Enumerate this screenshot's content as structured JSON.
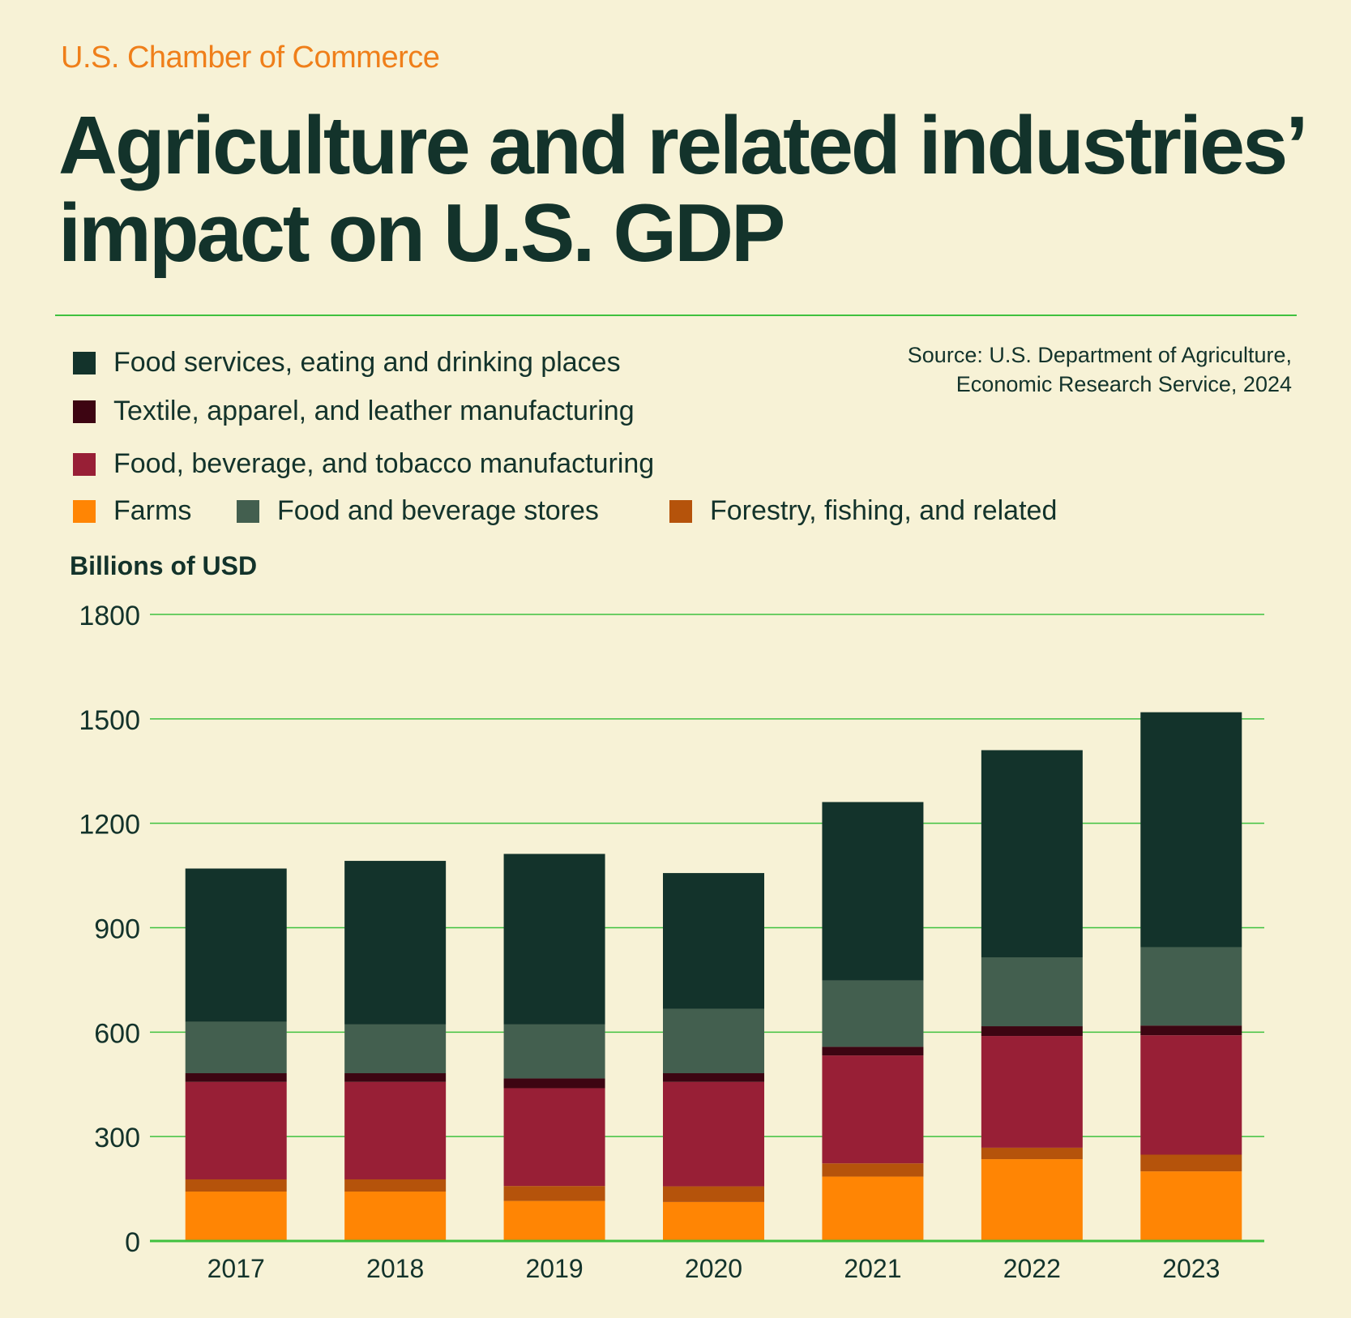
{
  "header": {
    "brand": "U.S. Chamber of Commerce",
    "title": "Agriculture and related industries’ impact on U.S. GDP"
  },
  "source": {
    "line1": "Source: U.S. Department of Agriculture,",
    "line2": "Economic Research Service, 2024"
  },
  "legend": [
    {
      "label": "Food services, eating and drinking places",
      "color": "#13332b"
    },
    {
      "label": "Textile, apparel, and leather manufacturing",
      "color": "#3d0512"
    },
    {
      "label": "Food, beverage, and tobacco manufacturing",
      "color": "#981f36"
    },
    {
      "label": "Farms",
      "color": "#ff8504"
    },
    {
      "label": "Food and beverage stores",
      "color": "#435f4f"
    },
    {
      "label": "Forestry, fishing, and related",
      "color": "#b5530b"
    }
  ],
  "chart_data": {
    "type": "bar",
    "stacked": true,
    "title": "Agriculture and related industries’ impact on U.S. GDP",
    "ylabel": "Billions of USD",
    "xlabel": "",
    "ylim": [
      0,
      1800
    ],
    "yticks": [
      "0",
      "300",
      "600",
      "900",
      "1200",
      "1500",
      "1800"
    ],
    "grid": true,
    "categories": [
      "2017",
      "2018",
      "2019",
      "2020",
      "2021",
      "2022",
      "2023"
    ],
    "series": [
      {
        "name": "Farms",
        "color": "#ff8504",
        "values": [
          142,
          142,
          115,
          112,
          185,
          235,
          200
        ]
      },
      {
        "name": "Forestry, fishing, and related",
        "color": "#b5530b",
        "values": [
          35,
          35,
          43,
          45,
          38,
          33,
          48
        ]
      },
      {
        "name": "Food, beverage, and tobacco manufacturing",
        "color": "#981f36",
        "values": [
          280,
          280,
          281,
          300,
          310,
          321,
          343
        ]
      },
      {
        "name": "Textile, apparel, and leather manufacturing",
        "color": "#3d0512",
        "values": [
          25,
          25,
          28,
          25,
          25,
          28,
          28
        ]
      },
      {
        "name": "Food and beverage stores",
        "color": "#435f4f",
        "values": [
          148,
          140,
          155,
          185,
          190,
          198,
          225
        ]
      },
      {
        "name": "Food services, eating and drinking places",
        "color": "#13332b",
        "values": [
          440,
          470,
          490,
          390,
          513,
          595,
          675
        ]
      }
    ]
  }
}
